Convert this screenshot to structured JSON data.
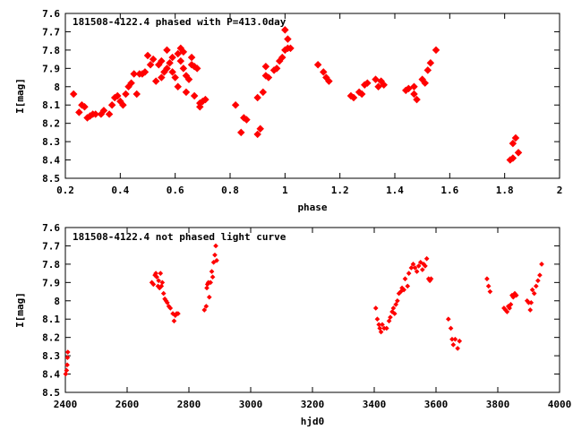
{
  "chart_data": [
    {
      "type": "scatter",
      "title": "181508-4122.4 phased with P=413.0day",
      "xlabel": "phase",
      "ylabel": "I[mag]",
      "xlim": [
        0.2,
        2.0
      ],
      "ylim": [
        8.5,
        7.6
      ],
      "y_inverted": true,
      "grid": false,
      "color": "#ff0000",
      "xticks": [
        0.2,
        0.4,
        0.6,
        0.8,
        1.0,
        1.2,
        1.4,
        1.6,
        1.8,
        2.0
      ],
      "xtick_labels": [
        "0.2",
        "0.4",
        "0.6",
        "0.8",
        "1",
        "1.2",
        "1.4",
        "1.6",
        "1.8",
        "2"
      ],
      "yticks": [
        7.6,
        7.7,
        7.8,
        7.9,
        8.0,
        8.1,
        8.2,
        8.3,
        8.4,
        8.5
      ],
      "ytick_labels": [
        "7.6",
        "7.7",
        "7.8",
        "7.9",
        "8",
        "8.1",
        "8.2",
        "8.3",
        "8.4",
        "8.5"
      ],
      "points": [
        [
          0.23,
          8.04
        ],
        [
          0.25,
          8.14
        ],
        [
          0.26,
          8.1
        ],
        [
          0.27,
          8.11
        ],
        [
          0.28,
          8.17
        ],
        [
          0.29,
          8.16
        ],
        [
          0.3,
          8.15
        ],
        [
          0.31,
          8.15
        ],
        [
          0.33,
          8.15
        ],
        [
          0.34,
          8.13
        ],
        [
          0.36,
          8.15
        ],
        [
          0.37,
          8.1
        ],
        [
          0.38,
          8.06
        ],
        [
          0.39,
          8.05
        ],
        [
          0.4,
          8.08
        ],
        [
          0.41,
          8.1
        ],
        [
          0.42,
          8.04
        ],
        [
          0.43,
          8.0
        ],
        [
          0.44,
          7.98
        ],
        [
          0.45,
          7.93
        ],
        [
          0.46,
          8.04
        ],
        [
          0.47,
          7.93
        ],
        [
          0.48,
          7.93
        ],
        [
          0.49,
          7.92
        ],
        [
          0.5,
          7.83
        ],
        [
          0.51,
          7.88
        ],
        [
          0.52,
          7.85
        ],
        [
          0.53,
          7.97
        ],
        [
          0.54,
          7.88
        ],
        [
          0.55,
          7.86
        ],
        [
          0.55,
          7.95
        ],
        [
          0.56,
          7.92
        ],
        [
          0.57,
          7.9
        ],
        [
          0.57,
          7.8
        ],
        [
          0.58,
          7.87
        ],
        [
          0.59,
          7.92
        ],
        [
          0.59,
          7.84
        ],
        [
          0.6,
          7.95
        ],
        [
          0.61,
          7.82
        ],
        [
          0.61,
          8.0
        ],
        [
          0.62,
          7.86
        ],
        [
          0.62,
          7.79
        ],
        [
          0.63,
          7.9
        ],
        [
          0.63,
          7.81
        ],
        [
          0.64,
          8.03
        ],
        [
          0.64,
          7.94
        ],
        [
          0.65,
          7.96
        ],
        [
          0.66,
          7.84
        ],
        [
          0.66,
          7.88
        ],
        [
          0.67,
          7.89
        ],
        [
          0.67,
          8.05
        ],
        [
          0.68,
          7.9
        ],
        [
          0.69,
          8.11
        ],
        [
          0.69,
          8.09
        ],
        [
          0.7,
          8.08
        ],
        [
          0.71,
          8.07
        ],
        [
          0.82,
          8.1
        ],
        [
          0.84,
          8.25
        ],
        [
          0.85,
          8.17
        ],
        [
          0.86,
          8.18
        ],
        [
          0.9,
          8.26
        ],
        [
          0.91,
          8.23
        ],
        [
          0.9,
          8.06
        ],
        [
          0.92,
          8.03
        ],
        [
          0.93,
          7.94
        ],
        [
          0.93,
          7.89
        ],
        [
          0.94,
          7.95
        ],
        [
          0.96,
          7.91
        ],
        [
          0.97,
          7.9
        ],
        [
          0.98,
          7.86
        ],
        [
          0.99,
          7.84
        ],
        [
          1.0,
          7.8
        ],
        [
          1.0,
          7.69
        ],
        [
          1.01,
          7.79
        ],
        [
          1.01,
          7.74
        ],
        [
          1.02,
          7.79
        ],
        [
          1.12,
          7.88
        ],
        [
          1.14,
          7.92
        ],
        [
          1.15,
          7.95
        ],
        [
          1.16,
          7.97
        ],
        [
          1.24,
          8.05
        ],
        [
          1.25,
          8.06
        ],
        [
          1.27,
          8.03
        ],
        [
          1.28,
          8.04
        ],
        [
          1.29,
          7.99
        ],
        [
          1.3,
          7.98
        ],
        [
          1.33,
          7.96
        ],
        [
          1.34,
          8.0
        ],
        [
          1.35,
          7.97
        ],
        [
          1.36,
          7.99
        ],
        [
          1.44,
          8.02
        ],
        [
          1.45,
          8.01
        ],
        [
          1.47,
          8.04
        ],
        [
          1.48,
          8.07
        ],
        [
          1.47,
          8.0
        ],
        [
          1.5,
          7.96
        ],
        [
          1.51,
          7.98
        ],
        [
          1.52,
          7.91
        ],
        [
          1.53,
          7.87
        ],
        [
          1.55,
          7.8
        ],
        [
          1.82,
          8.4
        ],
        [
          1.83,
          8.39
        ],
        [
          1.83,
          8.31
        ],
        [
          1.84,
          8.28
        ],
        [
          1.85,
          8.36
        ]
      ]
    },
    {
      "type": "scatter",
      "title": "181508-4122.4 not phased light curve",
      "xlabel": "hjd0",
      "ylabel": "I[mag]",
      "xlim": [
        2400,
        4000
      ],
      "ylim": [
        8.5,
        7.6
      ],
      "y_inverted": true,
      "grid": false,
      "color": "#ff0000",
      "xticks": [
        2400,
        2600,
        2800,
        3000,
        3200,
        3400,
        3600,
        3800,
        4000
      ],
      "xtick_labels": [
        "2400",
        "2600",
        "2800",
        "3000",
        "3200",
        "3400",
        "3600",
        "3800",
        "4000"
      ],
      "yticks": [
        7.6,
        7.7,
        7.8,
        7.9,
        8.0,
        8.1,
        8.2,
        8.3,
        8.4,
        8.5
      ],
      "ytick_labels": [
        "7.6",
        "7.7",
        "7.8",
        "7.9",
        "8",
        "8.1",
        "8.2",
        "8.3",
        "8.4",
        "8.5"
      ],
      "points": [
        [
          2401,
          8.4
        ],
        [
          2404,
          8.38
        ],
        [
          2406,
          8.35
        ],
        [
          2407,
          8.31
        ],
        [
          2408,
          8.28
        ],
        [
          2680,
          7.9
        ],
        [
          2685,
          7.91
        ],
        [
          2690,
          7.86
        ],
        [
          2693,
          7.85
        ],
        [
          2696,
          7.87
        ],
        [
          2700,
          7.92
        ],
        [
          2702,
          7.89
        ],
        [
          2705,
          7.93
        ],
        [
          2708,
          7.85
        ],
        [
          2711,
          7.92
        ],
        [
          2714,
          7.9
        ],
        [
          2718,
          7.96
        ],
        [
          2722,
          7.99
        ],
        [
          2726,
          8.0
        ],
        [
          2730,
          8.01
        ],
        [
          2735,
          8.03
        ],
        [
          2740,
          8.04
        ],
        [
          2748,
          8.07
        ],
        [
          2752,
          8.11
        ],
        [
          2756,
          8.08
        ],
        [
          2760,
          8.07
        ],
        [
          2765,
          8.07
        ],
        [
          2850,
          8.05
        ],
        [
          2856,
          8.03
        ],
        [
          2858,
          7.93
        ],
        [
          2860,
          7.91
        ],
        [
          2863,
          7.9
        ],
        [
          2866,
          7.98
        ],
        [
          2870,
          7.9
        ],
        [
          2874,
          7.84
        ],
        [
          2877,
          7.87
        ],
        [
          2880,
          7.79
        ],
        [
          2884,
          7.75
        ],
        [
          2887,
          7.7
        ],
        [
          2890,
          7.78
        ],
        [
          3405,
          8.04
        ],
        [
          3410,
          8.1
        ],
        [
          3415,
          8.13
        ],
        [
          3418,
          8.15
        ],
        [
          3422,
          8.17
        ],
        [
          3426,
          8.13
        ],
        [
          3432,
          8.15
        ],
        [
          3440,
          8.15
        ],
        [
          3448,
          8.11
        ],
        [
          3452,
          8.09
        ],
        [
          3458,
          8.06
        ],
        [
          3462,
          8.04
        ],
        [
          3466,
          8.07
        ],
        [
          3470,
          8.02
        ],
        [
          3475,
          8.0
        ],
        [
          3480,
          7.96
        ],
        [
          3486,
          7.95
        ],
        [
          3490,
          7.93
        ],
        [
          3496,
          7.94
        ],
        [
          3500,
          7.88
        ],
        [
          3508,
          7.92
        ],
        [
          3512,
          7.85
        ],
        [
          3520,
          7.82
        ],
        [
          3526,
          7.8
        ],
        [
          3532,
          7.82
        ],
        [
          3538,
          7.84
        ],
        [
          3544,
          7.81
        ],
        [
          3550,
          7.79
        ],
        [
          3556,
          7.83
        ],
        [
          3560,
          7.8
        ],
        [
          3565,
          7.81
        ],
        [
          3570,
          7.77
        ],
        [
          3576,
          7.88
        ],
        [
          3580,
          7.89
        ],
        [
          3584,
          7.88
        ],
        [
          3640,
          8.1
        ],
        [
          3648,
          8.15
        ],
        [
          3652,
          8.21
        ],
        [
          3656,
          8.24
        ],
        [
          3662,
          8.21
        ],
        [
          3670,
          8.26
        ],
        [
          3676,
          8.22
        ],
        [
          3765,
          7.88
        ],
        [
          3770,
          7.92
        ],
        [
          3775,
          7.95
        ],
        [
          3820,
          8.04
        ],
        [
          3825,
          8.05
        ],
        [
          3830,
          8.06
        ],
        [
          3834,
          8.03
        ],
        [
          3838,
          8.04
        ],
        [
          3842,
          8.02
        ],
        [
          3846,
          7.97
        ],
        [
          3850,
          7.98
        ],
        [
          3855,
          7.96
        ],
        [
          3860,
          7.97
        ],
        [
          3895,
          8.0
        ],
        [
          3900,
          8.01
        ],
        [
          3905,
          8.05
        ],
        [
          3908,
          8.01
        ],
        [
          3912,
          7.94
        ],
        [
          3918,
          7.96
        ],
        [
          3924,
          7.92
        ],
        [
          3930,
          7.89
        ],
        [
          3936,
          7.86
        ],
        [
          3942,
          7.8
        ]
      ]
    }
  ]
}
